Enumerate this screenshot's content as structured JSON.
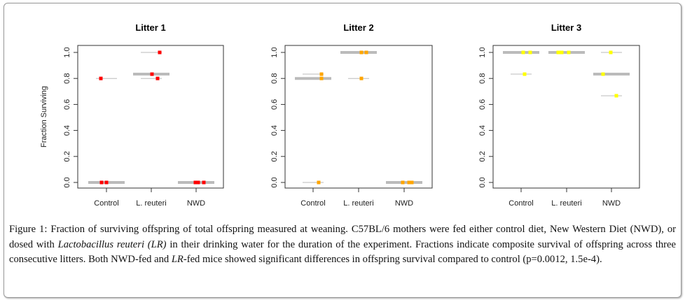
{
  "chart_data": [
    {
      "type": "scatter",
      "title": "Litter 1",
      "ylabel": "Fraction Surviving",
      "ylim": [
        0,
        1
      ],
      "yticks": [
        "0.0",
        "0.2",
        "0.4",
        "0.6",
        "0.8",
        "1.0"
      ],
      "categories": [
        "Control",
        "L. reuteri",
        "NWD"
      ],
      "point_color": "#ff0000",
      "groups": [
        {
          "name": "Control",
          "values": [
            0.8,
            0,
            0
          ],
          "median": 0
        },
        {
          "name": "L. reuteri",
          "values": [
            1.0,
            0.833,
            0.8
          ],
          "median": 0.833
        },
        {
          "name": "NWD",
          "values": [
            0,
            0,
            0
          ],
          "median": 0
        }
      ]
    },
    {
      "type": "scatter",
      "title": "Litter 2",
      "ylabel": "",
      "ylim": [
        0,
        1
      ],
      "yticks": [
        "0.0",
        "0.2",
        "0.4",
        "0.6",
        "0.8",
        "1.0"
      ],
      "categories": [
        "Control",
        "L. reuteri",
        "NWD"
      ],
      "point_color": "#ffa500",
      "groups": [
        {
          "name": "Control",
          "values": [
            0.833,
            0.8,
            0
          ],
          "median": 0.8
        },
        {
          "name": "L. reuteri",
          "values": [
            1.0,
            1.0,
            0.8
          ],
          "median": 1.0
        },
        {
          "name": "NWD",
          "values": [
            0,
            0,
            0
          ],
          "median": 0
        }
      ]
    },
    {
      "type": "scatter",
      "title": "Litter 3",
      "ylabel": "",
      "ylim": [
        0,
        1
      ],
      "yticks": [
        "0.0",
        "0.2",
        "0.4",
        "0.6",
        "0.8",
        "1.0"
      ],
      "categories": [
        "Control",
        "L. reuteri",
        "NWD"
      ],
      "point_color": "#ffff00",
      "groups": [
        {
          "name": "Control",
          "values": [
            1.0,
            1.0,
            0.833
          ],
          "median": 1.0
        },
        {
          "name": "L. reuteri",
          "values": [
            1.0,
            1.0,
            1.0
          ],
          "median": 1.0
        },
        {
          "name": "NWD",
          "values": [
            1.0,
            0.833,
            0.667
          ],
          "median": 0.833
        }
      ]
    }
  ],
  "caption": [
    {
      "text": "Figure 1: Fraction of surviving offspring of total offspring measured at weaning. C57BL/6 mothers were fed either control diet, New Western Diet (NWD), or dosed with ",
      "italic": false
    },
    {
      "text": "Lactobacillus reuteri (LR)",
      "italic": true
    },
    {
      "text": " in their drinking water for the duration of the experiment. Fractions indicate composite survival of offspring across three consecutive litters. Both NWD-fed and ",
      "italic": false
    },
    {
      "text": "LR",
      "italic": true
    },
    {
      "text": "-fed mice showed significant differences in offspring survival compared to control (p=0.0012, 1.5e-4).",
      "italic": false
    }
  ]
}
